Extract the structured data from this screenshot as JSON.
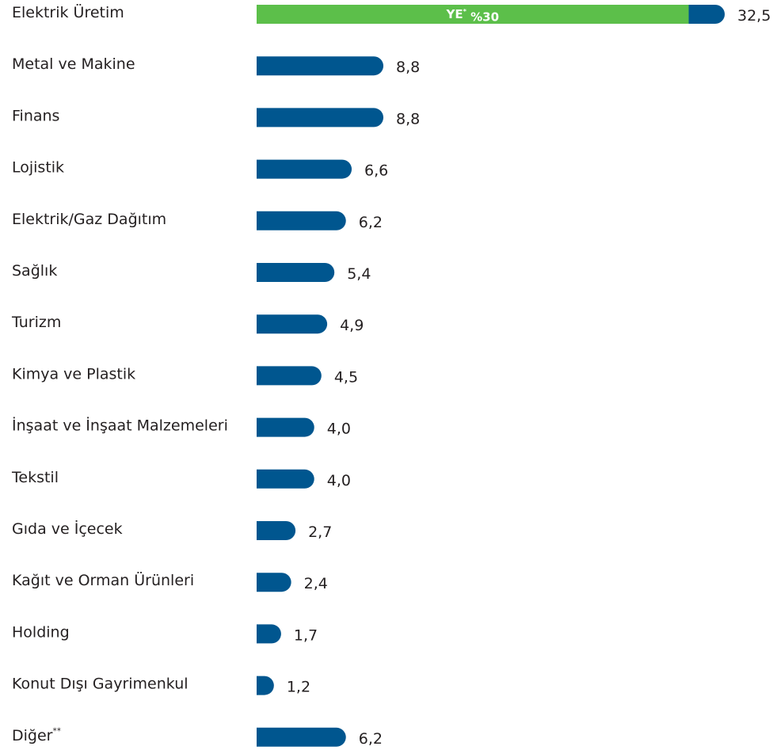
{
  "chart_data": {
    "type": "bar",
    "orientation": "horizontal",
    "categories": [
      "Elektrik Üretim",
      "Metal ve Makine",
      "Finans",
      "Lojistik",
      "Elektrik/Gaz Dağıtım",
      "Sağlık",
      "Turizm",
      "Kimya ve Plastik",
      "İnşaat ve İnşaat Malzemeleri",
      "Tekstil",
      "Gıda ve İçecek",
      "Kağıt ve Orman Ürünleri",
      "Holding",
      "Konut Dışı Gayrimenkul",
      "Diğer**"
    ],
    "values": [
      32.5,
      8.8,
      8.8,
      6.6,
      6.2,
      5.4,
      4.9,
      4.5,
      4.0,
      4.0,
      2.7,
      2.4,
      1.7,
      1.2,
      6.2
    ],
    "value_labels": [
      "32,5",
      "8,8",
      "8,8",
      "6,6",
      "6,2",
      "5,4",
      "4,9",
      "4,5",
      "4,0",
      "4,0",
      "2,7",
      "2,4",
      "1,7",
      "1,2",
      "6,2"
    ],
    "color": "#00568f",
    "highlight": {
      "category": "Elektrik Üretim",
      "value": 30,
      "label": "YE* %30",
      "color": "#5cbf4a"
    }
  }
}
